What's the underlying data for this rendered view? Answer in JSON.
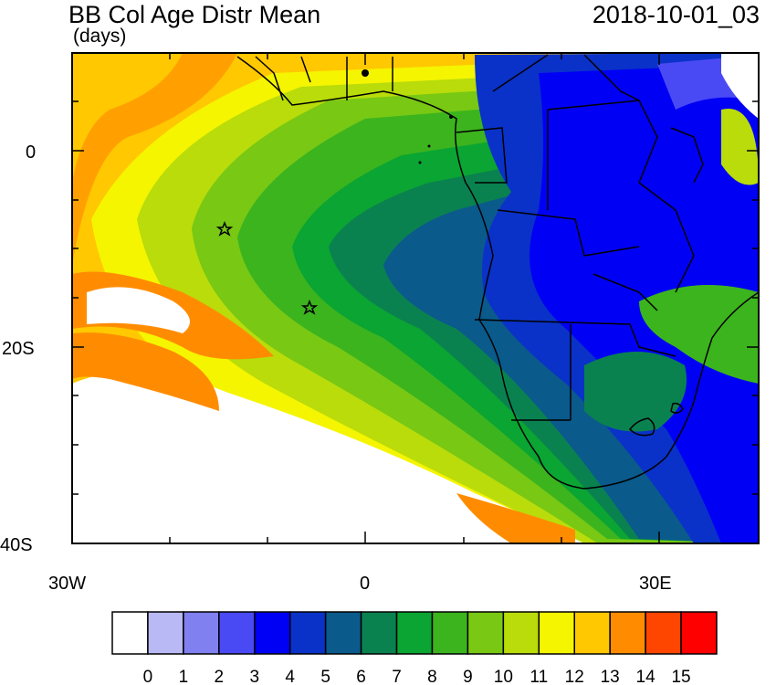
{
  "header": {
    "title": "BB Col Age Distr Mean",
    "units": "(days)",
    "date": "2018-10-01_03"
  },
  "axes": {
    "y_ticks": [
      "0",
      "20S",
      "40S"
    ],
    "x_ticks": [
      "30W",
      "0",
      "30E"
    ]
  },
  "markers": {
    "count": 2,
    "symbol": "star"
  },
  "colorbar": {
    "labels": [
      "0",
      "1",
      "2",
      "3",
      "4",
      "5",
      "6",
      "7",
      "8",
      "9",
      "10",
      "11",
      "12",
      "13",
      "14",
      "15"
    ],
    "colors": [
      "#ffffff",
      "#b9b9f5",
      "#8080f0",
      "#4a4af5",
      "#0000f5",
      "#0a32c8",
      "#0a5a8c",
      "#0a8250",
      "#0aa532",
      "#3cb41e",
      "#78c814",
      "#b9dc0a",
      "#f5f500",
      "#ffc800",
      "#ff8c00",
      "#ff4600",
      "#ff0000"
    ]
  }
}
